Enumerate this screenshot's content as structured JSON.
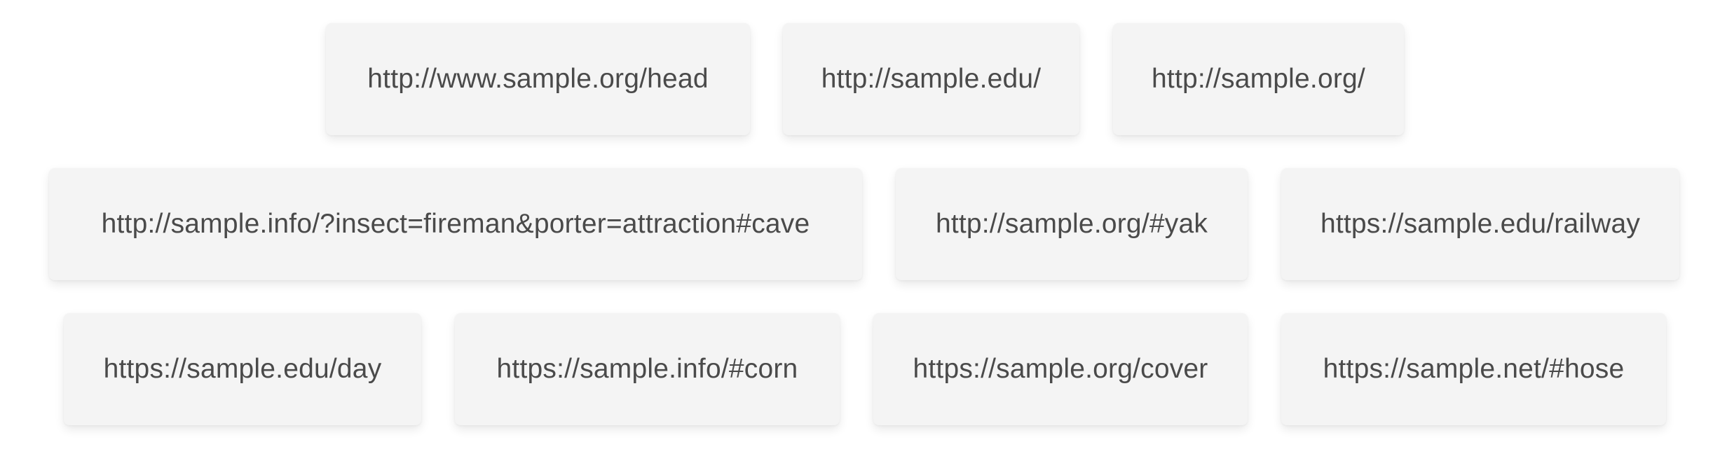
{
  "links": [
    {
      "label": "http://www.sample.org/head"
    },
    {
      "label": "http://sample.edu/"
    },
    {
      "label": "http://sample.org/"
    },
    {
      "label": "http://sample.info/?insect=fireman&porter=attraction#cave"
    },
    {
      "label": "http://sample.org/#yak"
    },
    {
      "label": "https://sample.edu/railway"
    },
    {
      "label": "https://sample.edu/day"
    },
    {
      "label": "https://sample.info/#corn"
    },
    {
      "label": "https://sample.org/cover"
    },
    {
      "label": "https://sample.net/#hose"
    }
  ],
  "colors": {
    "chip_background": "#f4f4f4",
    "text": "#4a4a4a",
    "page_background": "#ffffff"
  }
}
